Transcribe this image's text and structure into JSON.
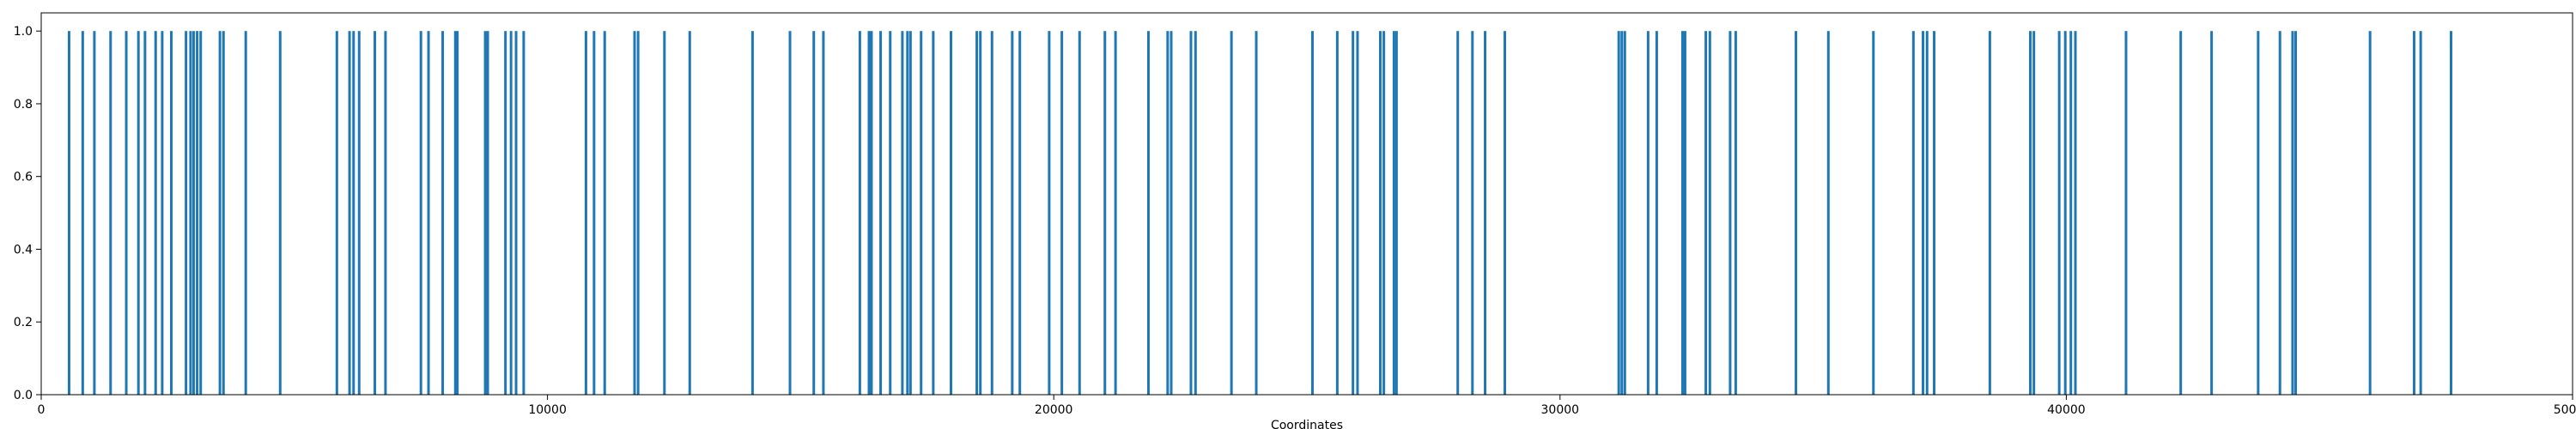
{
  "chart_data": {
    "type": "bar",
    "title": "",
    "xlabel": "Coordinates",
    "ylabel": "",
    "xlim": [
      0,
      50000
    ],
    "ylim": [
      0,
      1.05
    ],
    "grid": false,
    "x_ticks": [
      {
        "value": 0,
        "label": "0"
      },
      {
        "value": 10000,
        "label": "10000"
      },
      {
        "value": 20000,
        "label": "20000"
      },
      {
        "value": 30000,
        "label": "30000"
      },
      {
        "value": 40000,
        "label": "40000"
      },
      {
        "value": 50000,
        "label": "50000"
      }
    ],
    "y_ticks": [
      {
        "value": 0.0,
        "label": "0.0"
      },
      {
        "value": 0.2,
        "label": "0.2"
      },
      {
        "value": 0.4,
        "label": "0.4"
      },
      {
        "value": 0.6,
        "label": "0.6"
      },
      {
        "value": 0.8,
        "label": "0.8"
      },
      {
        "value": 1.0,
        "label": "1.0"
      }
    ],
    "color": "#1f77b4",
    "bar_value": 1.0,
    "x": [
      550,
      820,
      1050,
      1370,
      1680,
      1920,
      2050,
      2260,
      2390,
      2570,
      2860,
      2950,
      3010,
      3080,
      3150,
      3530,
      3600,
      4040,
      4720,
      5840,
      6090,
      6170,
      6280,
      6590,
      6800,
      7500,
      7650,
      7930,
      8180,
      8220,
      8770,
      8820,
      9170,
      9280,
      9380,
      9530,
      10760,
      10920,
      11130,
      11720,
      11790,
      12310,
      12810,
      14050,
      14790,
      15260,
      15450,
      16170,
      16350,
      16400,
      16580,
      16770,
      17010,
      17110,
      17170,
      17380,
      17620,
      17970,
      18480,
      18550,
      18780,
      19180,
      19330,
      19910,
      20160,
      20510,
      21010,
      21220,
      21870,
      22250,
      22320,
      22710,
      22800,
      23510,
      24000,
      25110,
      25600,
      25910,
      26000,
      26450,
      26520,
      26720,
      26770,
      27980,
      28270,
      28520,
      28910,
      31160,
      31220,
      31280,
      31740,
      31910,
      32420,
      32470,
      32880,
      32960,
      33360,
      33470,
      34660,
      35300,
      36190,
      36980,
      37170,
      37250,
      37390,
      38490,
      39290,
      39360,
      39860,
      39980,
      40090,
      40180,
      41180,
      42260,
      42870,
      43790,
      44220,
      44470,
      44530,
      46000,
      46870,
      47000,
      47600
    ]
  }
}
